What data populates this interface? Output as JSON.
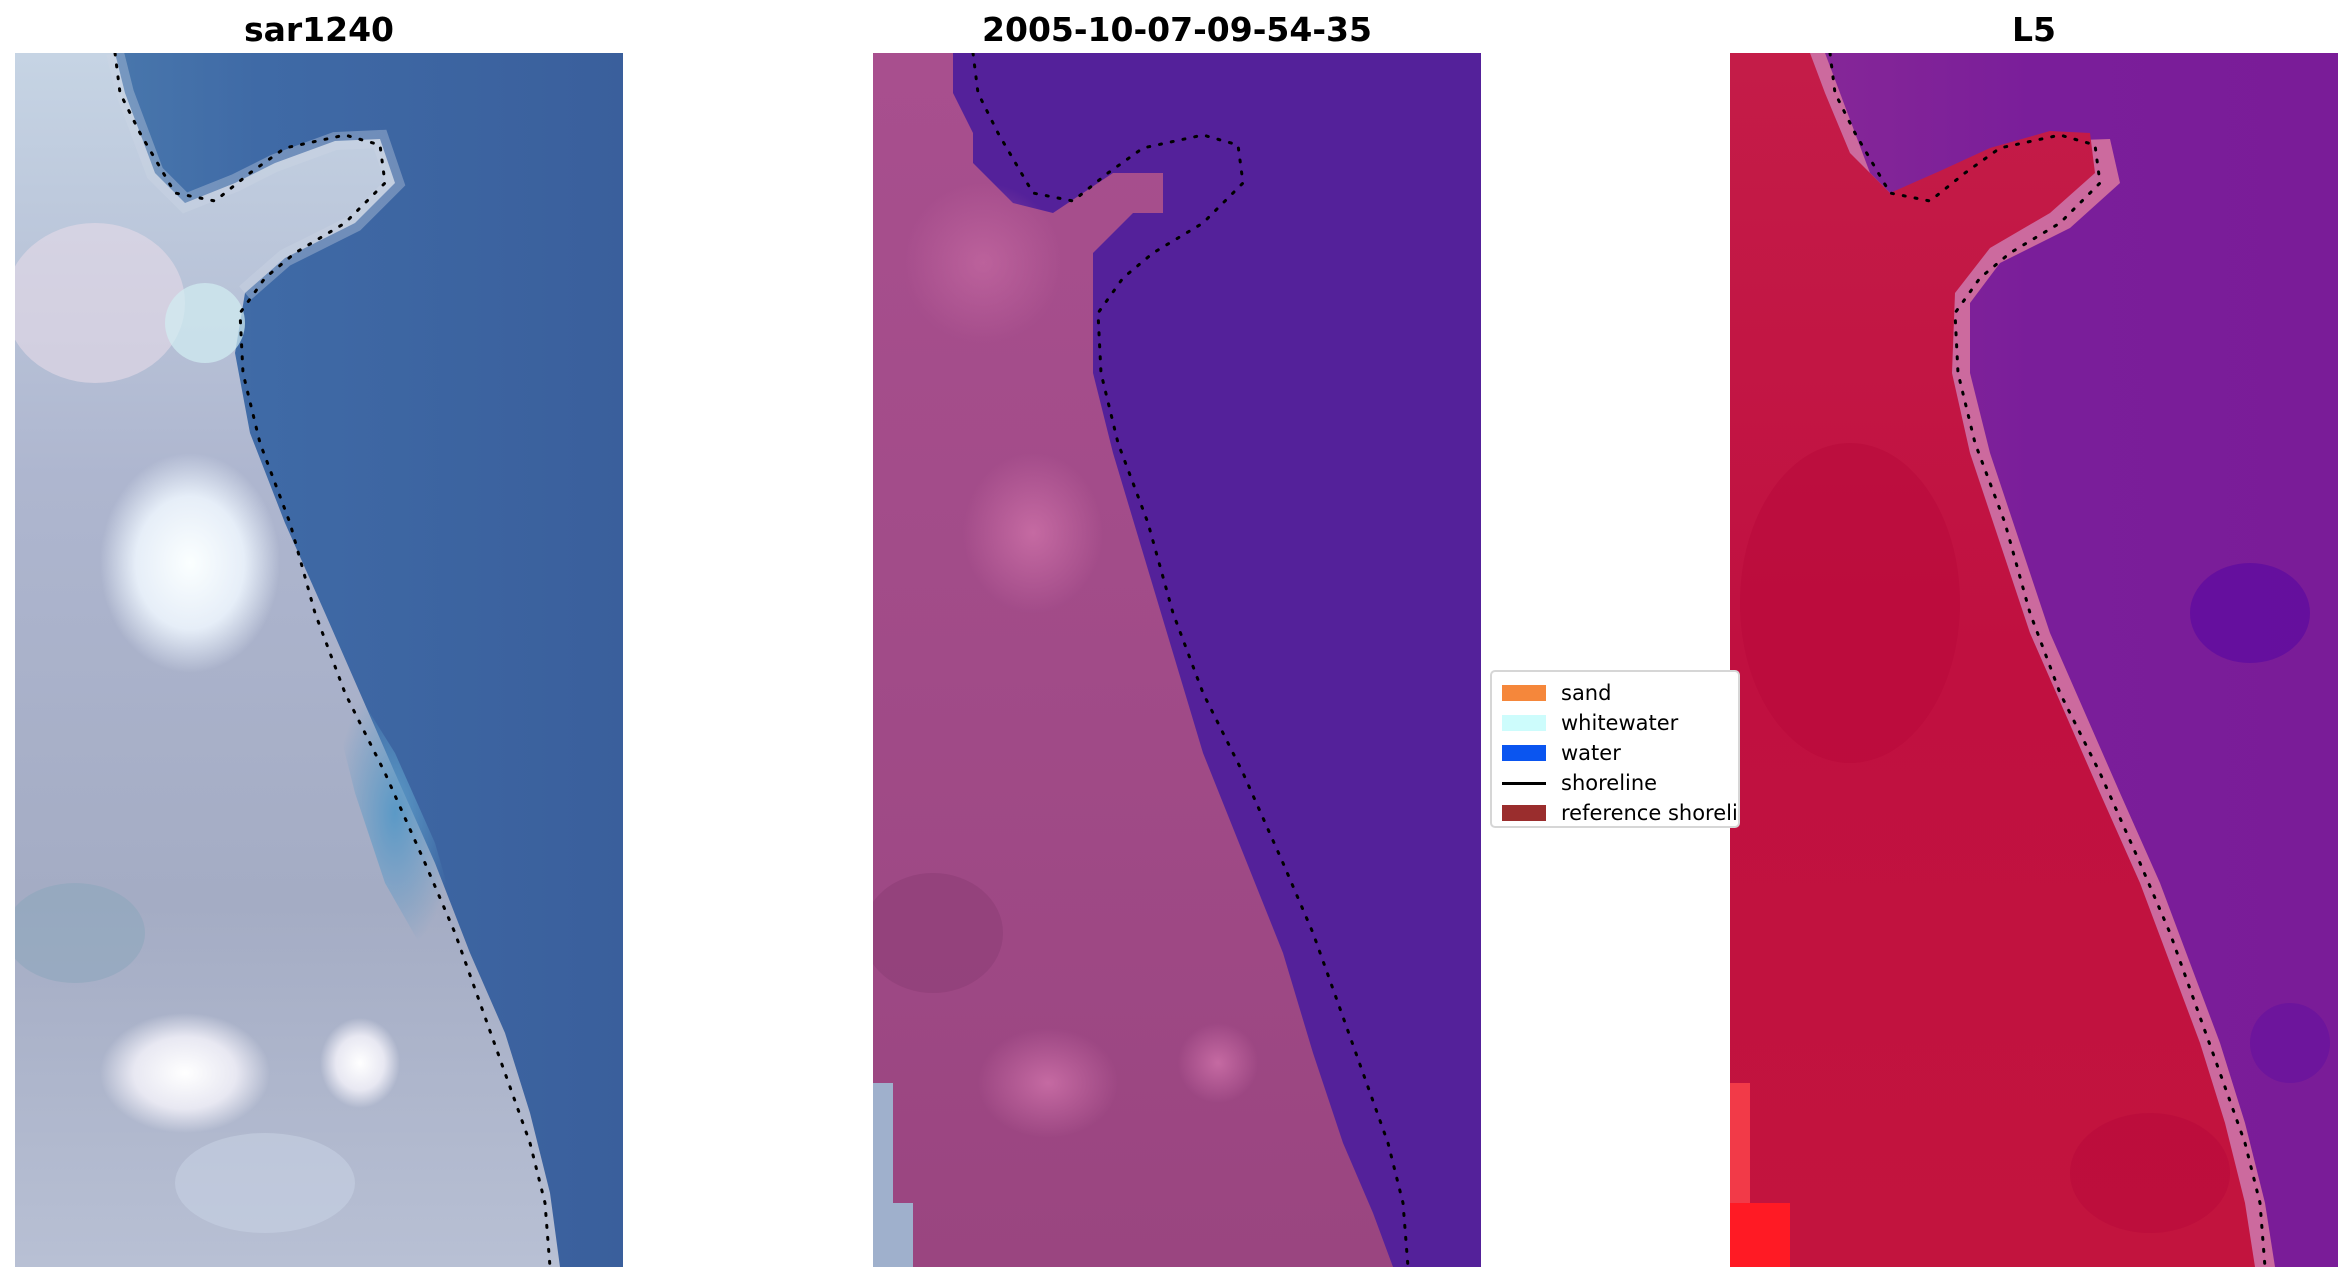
{
  "panels": [
    {
      "title": "sar1240"
    },
    {
      "title": "2005-10-07-09-54-35"
    },
    {
      "title": "L5"
    }
  ],
  "legend": {
    "items": [
      {
        "label": "sand",
        "color": "#f5873b",
        "kind": "patch"
      },
      {
        "label": "whitewater",
        "color": "#cdfcfc",
        "kind": "patch"
      },
      {
        "label": "water",
        "color": "#0a55f0",
        "kind": "patch"
      },
      {
        "label": "shoreline",
        "color": "#000000",
        "kind": "line"
      },
      {
        "label": "reference shoreline",
        "color": "#9a2d2d",
        "kind": "patch"
      }
    ]
  },
  "colors": {
    "rgb_water": "#3b62a0",
    "rgb_land": "#a8b0c8",
    "rgb_whitewater": "#f4f8fb",
    "classified_water": "#54219a",
    "classified_land": "#a04c8a",
    "ndwi_land": "#c8143e",
    "ndwi_water": "#7a1e96",
    "shoreline_dots": "#000000"
  }
}
